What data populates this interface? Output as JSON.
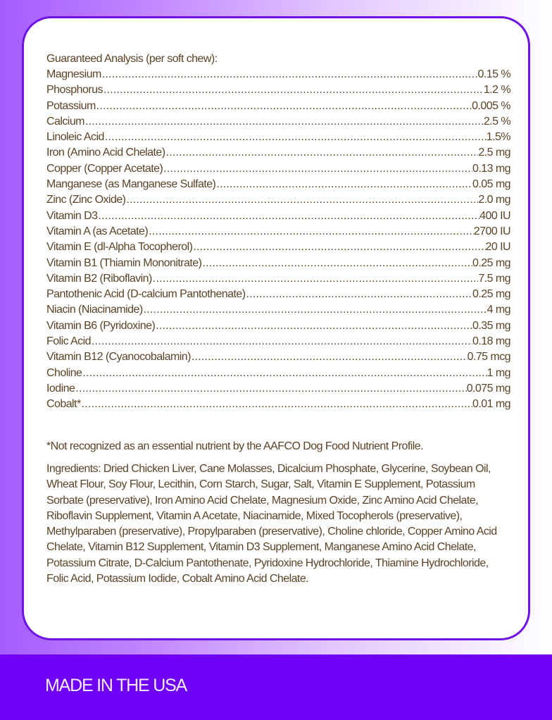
{
  "analysis": {
    "heading": "Guaranteed Analysis (per soft chew):",
    "rows": [
      {
        "name": "Magnesium",
        "value": "0.15 %"
      },
      {
        "name": "Phosphorus",
        "value": "1.2 %"
      },
      {
        "name": "Potassium",
        "value": "0.005 %"
      },
      {
        "name": "Calcium",
        "value": "2.5 %"
      },
      {
        "name": "Linoleic Acid",
        "value": "1.5%"
      },
      {
        "name": "Iron (Amino Acid Chelate)",
        "value": "2.5 mg"
      },
      {
        "name": "Copper (Copper Acetate)",
        "value": "0.13 mg"
      },
      {
        "name": "Manganese (as Manganese Sulfate)",
        "value": "0.05 mg"
      },
      {
        "name": "Zinc (Zinc Oxide)",
        "value": "2.0 mg"
      },
      {
        "name": "Vitamin  D3",
        "value": "400  IU"
      },
      {
        "name": "Vitamin  A  (as  Acetate)",
        "value": "2700  IU"
      },
      {
        "name": "Vitamin E (dl-Alpha Tocopherol)",
        "value": "20 IU"
      },
      {
        "name": "Vitamin B1 (Thiamin Mononitrate)",
        "value": "0.25  mg"
      },
      {
        "name": "Vitamin B2  (Riboflavin)",
        "value": "7.5 mg"
      },
      {
        "name": "Pantothenic Acid (D-calcium Pantothenate)",
        "value": "0.25 mg"
      },
      {
        "name": "Niacin (Niacinamide)",
        "value": "4 mg"
      },
      {
        "name": "Vitamin B6 (Pyridoxine)",
        "value": "0.35 mg"
      },
      {
        "name": "Folic Acid",
        "value": "0.18 mg"
      },
      {
        "name": "Vitamin B12 (Cyanocobalamin)",
        "value": "0.75 mcg"
      },
      {
        "name": "Choline",
        "value": "1 mg"
      },
      {
        "name": "Iodine",
        "value": "0.075 mg"
      },
      {
        "name": "Cobalt*",
        "value": "0.01 mg"
      }
    ]
  },
  "footnote": "*Not recognized as an essential nutrient by the AAFCO Dog Food Nutrient Profile.",
  "ingredients": "Ingredients: Dried Chicken Liver, Cane Molasses, Dicalcium Phosphate, Glycerine, Soybean Oil, Wheat Flour, Soy Flour, Lecithin, Corn Starch, Sugar, Salt, Vitamin E Supplement, Potassium Sorbate (preservative), Iron Amino Acid Chelate, Magnesium Oxide, Zinc Amino Acid Chelate, Riboflavin Supplement, Vitamin A Acetate, Niacinamide, Mixed Tocopherols (preservative), Methylparaben (preservative), Propylparaben (preservative), Choline chloride, Copper Amino Acid Chelate, Vitamin B12 Supplement, Vitamin D3 Supplement, Manganese Amino Acid Chelate, Potassium Citrate, D-Calcium Pantothenate, Pyridoxine Hydrochloride, Thiamine Hydrochloride, Folic Acid, Potassium Iodide, Cobalt Amino Acid Chelate.",
  "footer": {
    "label": "MADE IN THE USA"
  },
  "colors": {
    "accent": "#7000f5",
    "border": "#6e12e6",
    "text": "#5b4327"
  }
}
